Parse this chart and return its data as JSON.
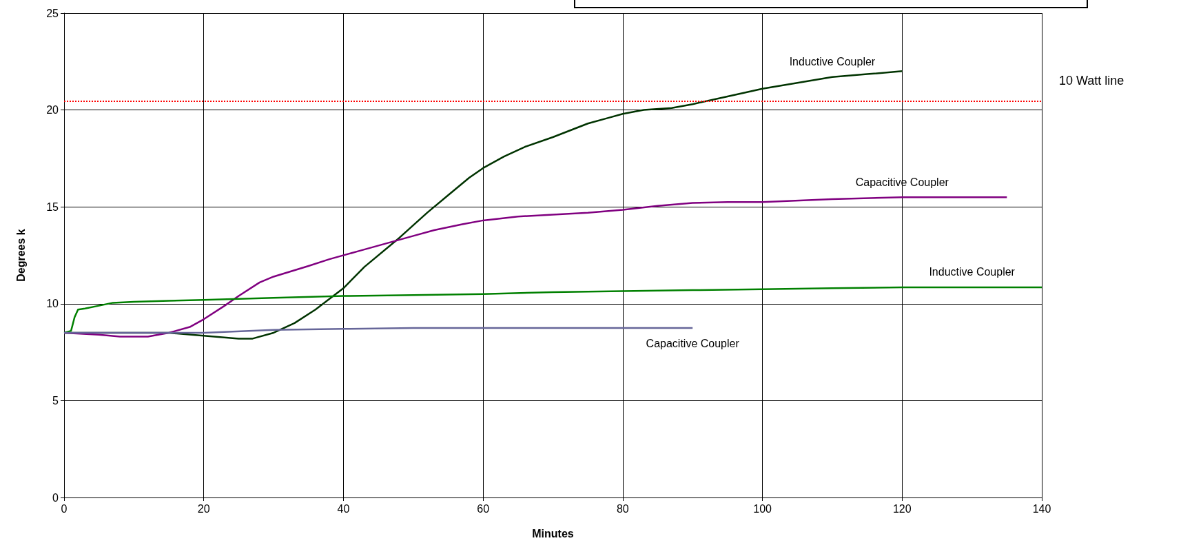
{
  "chart_data": {
    "type": "line",
    "xlabel": "Minutes",
    "ylabel": "Degrees k",
    "xlim": [
      0,
      140
    ],
    "xticks": [
      0,
      20,
      40,
      60,
      80,
      100,
      120,
      140
    ],
    "ylim": [
      0,
      25
    ],
    "yticks": [
      0,
      5,
      10,
      15,
      20,
      25
    ],
    "grid": true,
    "legend": false,
    "marker": "none",
    "line_style": "solid",
    "series": [
      {
        "name": "Inductive Coupler",
        "color": "#003300",
        "x": [
          0,
          5,
          10,
          15,
          20,
          25,
          27,
          30,
          33,
          36,
          40,
          43,
          48,
          52,
          55,
          58,
          60,
          63,
          66,
          70,
          75,
          78,
          80,
          83,
          87,
          90,
          95,
          100,
          105,
          110,
          115,
          120
        ],
        "values": [
          8.5,
          8.5,
          8.5,
          8.5,
          8.35,
          8.2,
          8.2,
          8.5,
          9.0,
          9.7,
          10.8,
          11.9,
          13.4,
          14.7,
          15.6,
          16.5,
          17.0,
          17.6,
          18.1,
          18.6,
          19.3,
          19.6,
          19.8,
          20.0,
          20.1,
          20.3,
          20.7,
          21.1,
          21.4,
          21.7,
          21.85,
          22.0
        ]
      },
      {
        "name": "Capacitive Coupler",
        "color": "#800080",
        "x": [
          0,
          5,
          8,
          12,
          15,
          18,
          20,
          23,
          25,
          28,
          30,
          35,
          38,
          42,
          46,
          50,
          53,
          57,
          60,
          65,
          70,
          75,
          80,
          85,
          90,
          95,
          100,
          110,
          120,
          135
        ],
        "values": [
          8.5,
          8.4,
          8.3,
          8.3,
          8.5,
          8.8,
          9.2,
          9.9,
          10.4,
          11.1,
          11.4,
          11.95,
          12.3,
          12.7,
          13.1,
          13.5,
          13.8,
          14.1,
          14.3,
          14.5,
          14.6,
          14.7,
          14.85,
          15.05,
          15.2,
          15.25,
          15.25,
          15.4,
          15.5,
          15.5
        ]
      },
      {
        "name": "Inductive Coupler",
        "color": "#008000",
        "x": [
          0,
          1,
          1.5,
          2,
          3,
          5,
          7,
          10,
          15,
          20,
          30,
          40,
          50,
          60,
          70,
          80,
          90,
          100,
          110,
          120,
          130,
          140
        ],
        "values": [
          8.5,
          8.6,
          9.3,
          9.7,
          9.75,
          9.9,
          10.05,
          10.1,
          10.15,
          10.2,
          10.3,
          10.4,
          10.45,
          10.5,
          10.6,
          10.65,
          10.7,
          10.75,
          10.8,
          10.85,
          10.85,
          10.85
        ]
      },
      {
        "name": "Capacitive Coupler",
        "color": "#666699",
        "x": [
          0,
          20,
          30,
          40,
          50,
          60,
          90
        ],
        "values": [
          8.5,
          8.5,
          8.65,
          8.7,
          8.75,
          8.75,
          8.75
        ]
      }
    ],
    "ref_lines": [
      {
        "axis": "y",
        "value": 20.45,
        "label": "10 Watt line",
        "color": "#ff0000",
        "line_style": "dotted"
      }
    ]
  }
}
